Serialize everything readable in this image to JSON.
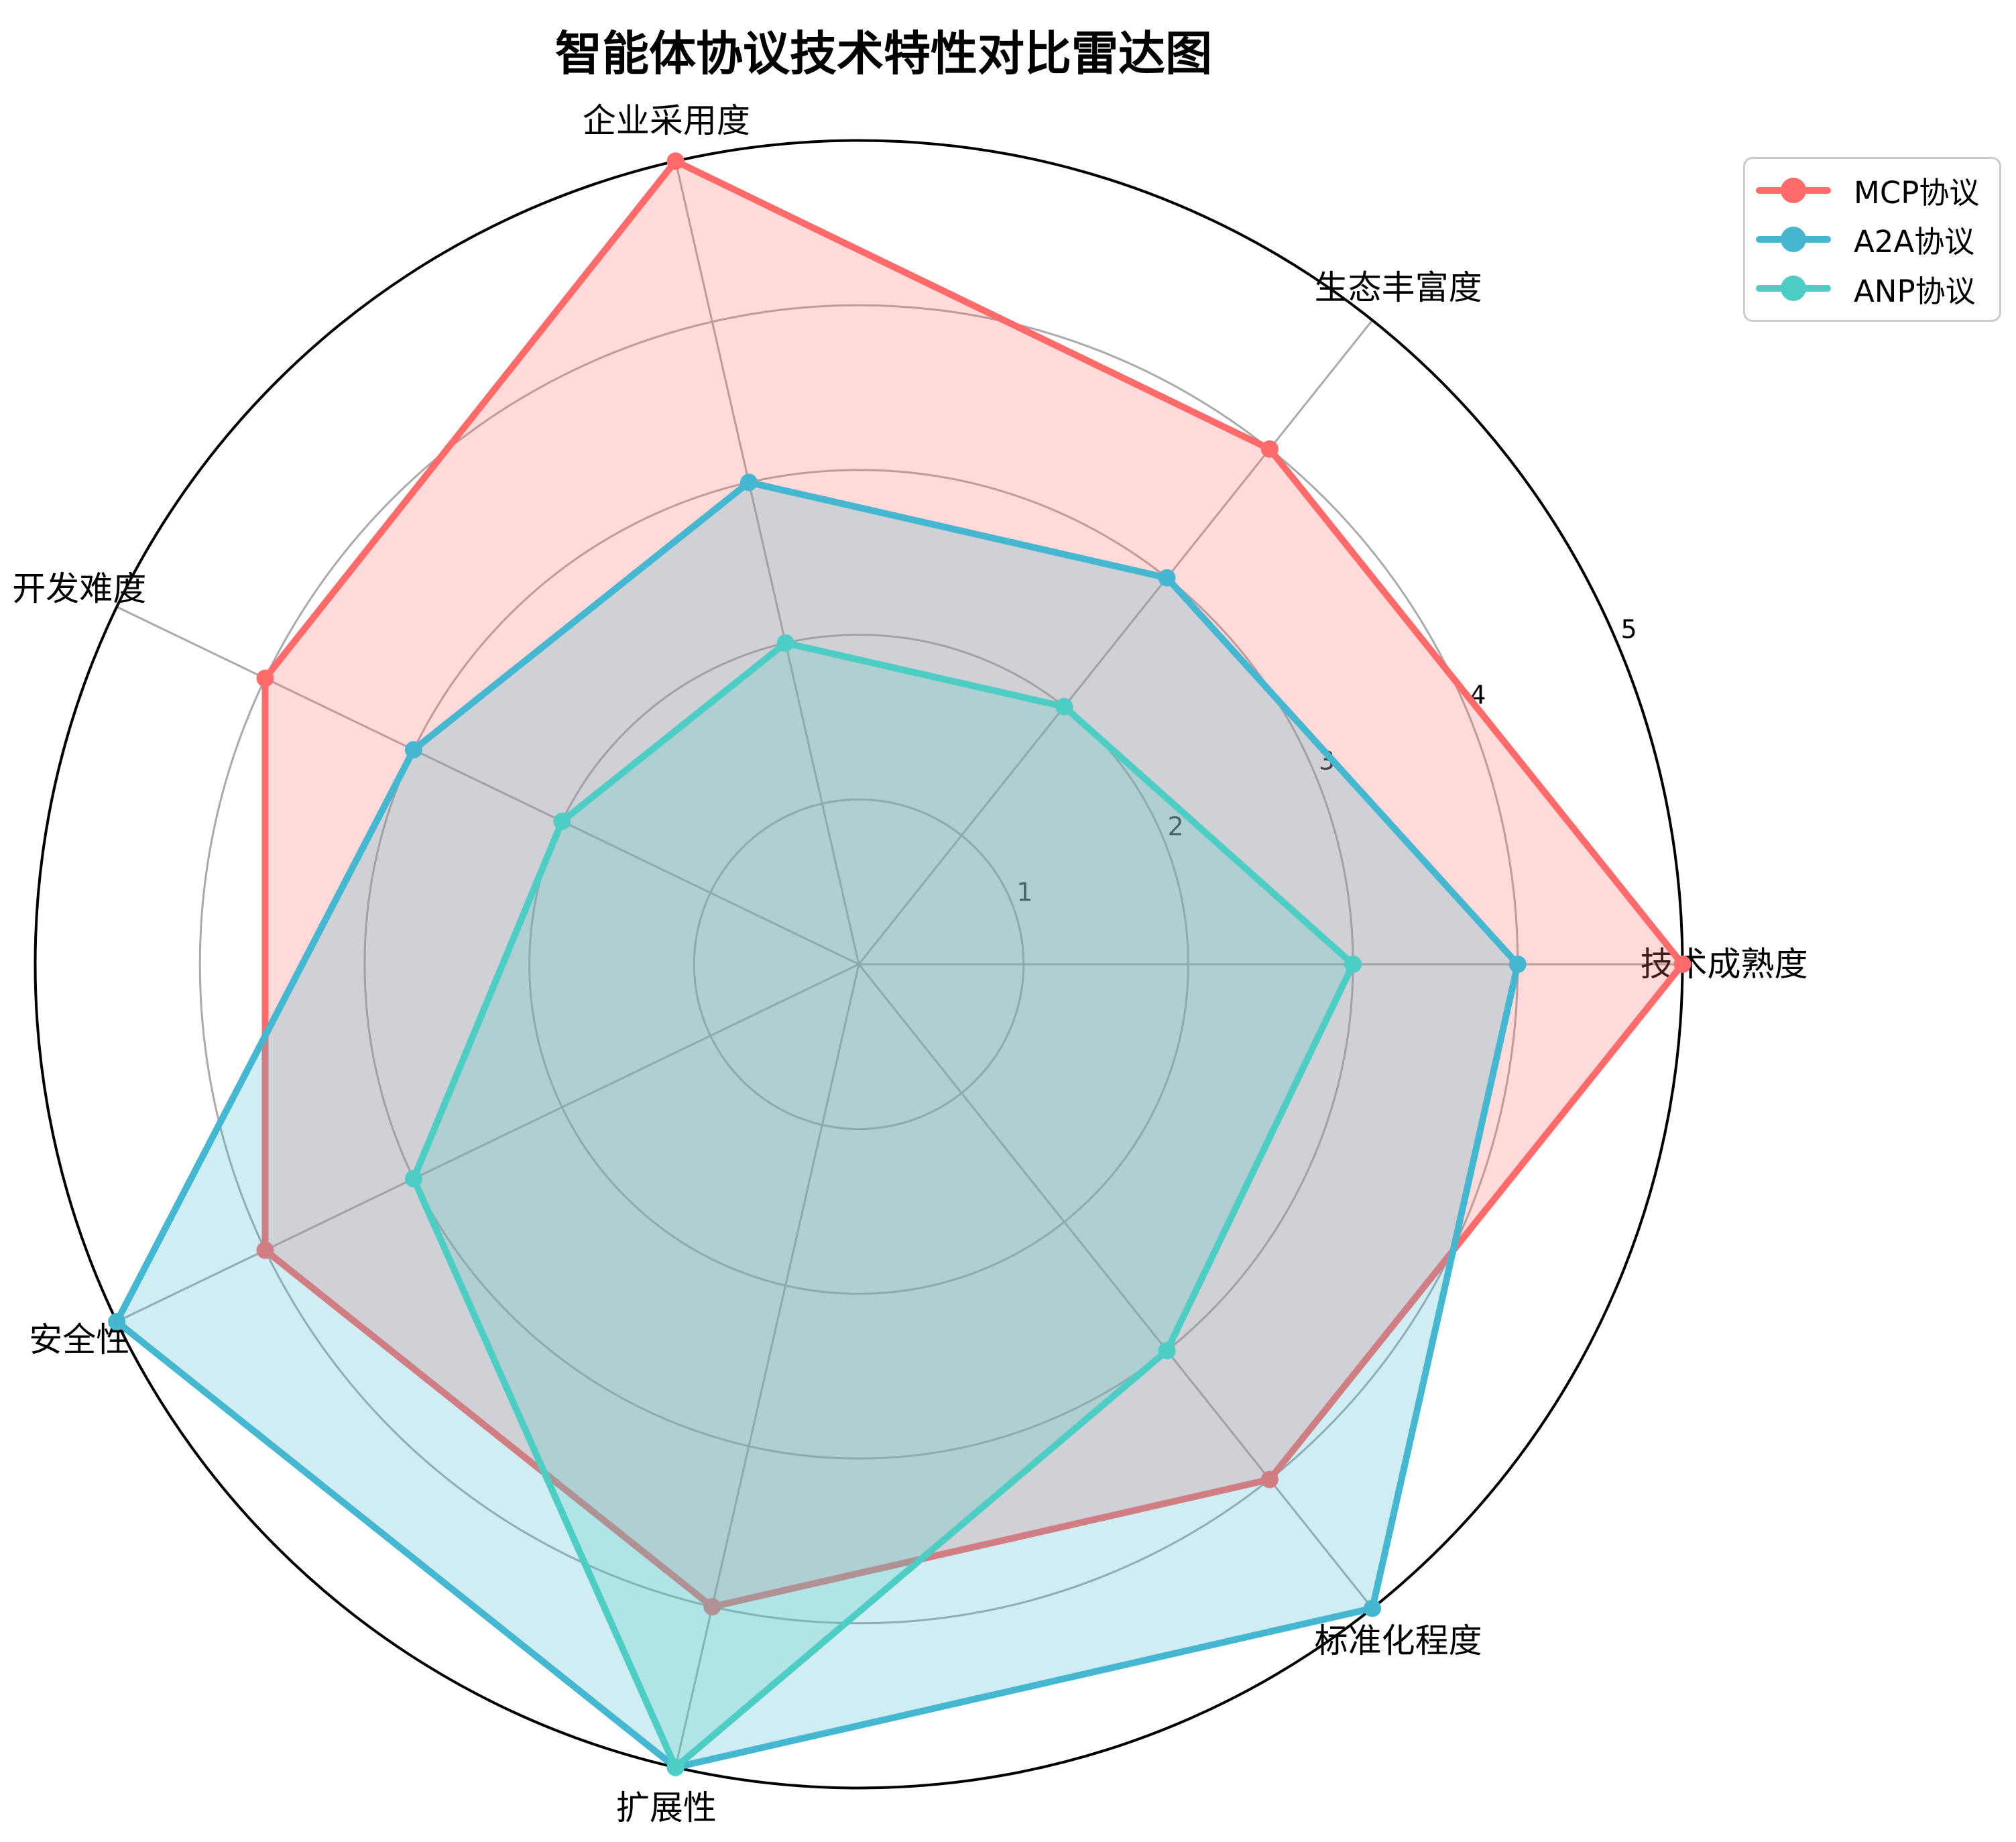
{
  "title": "智能体协议技术特性对比雷达图",
  "chart_data": {
    "type": "radar",
    "title": "智能体协议技术特性对比雷达图",
    "categories": [
      "技术成熟度",
      "生态丰富度",
      "企业采用度",
      "开发难度",
      "安全性",
      "扩展性",
      "标准化程度"
    ],
    "series": [
      {
        "name": "MCP协议",
        "color": "#FF6B6B",
        "values": [
          5,
          4,
          5,
          4,
          4,
          4,
          4
        ]
      },
      {
        "name": "A2A协议",
        "color": "#45B7D1",
        "values": [
          4,
          3,
          3,
          3,
          5,
          5,
          5
        ]
      },
      {
        "name": "ANP协议",
        "color": "#4ECDC4",
        "values": [
          3,
          2,
          2,
          2,
          3,
          5,
          3
        ]
      }
    ],
    "r_ticks": [
      "1",
      "2",
      "3",
      "4",
      "5"
    ],
    "r_max": 5,
    "start_angle_deg": 0,
    "direction": "counterclockwise",
    "grid": true,
    "fill_opacity": 0.25,
    "legend_position": "upper right"
  },
  "styles": {
    "grid_color": "#aaaaaa",
    "outer_ring_color": "#000000",
    "label_color": "#000000",
    "tick_label_color": "#000000",
    "legend_border_color": "#cccccc",
    "background_color": "#ffffff"
  }
}
